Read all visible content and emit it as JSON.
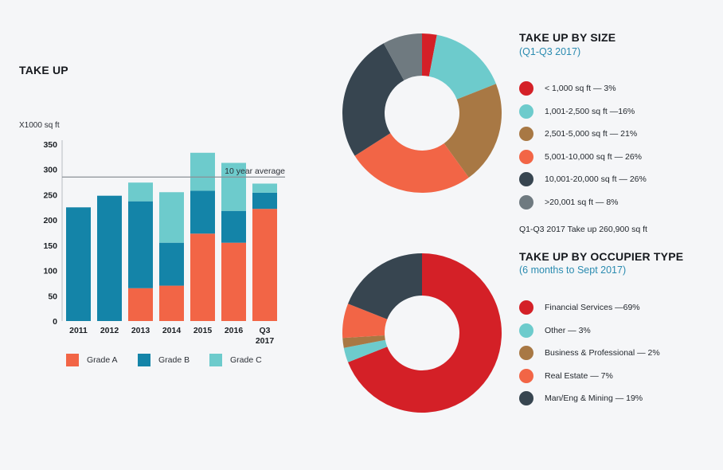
{
  "bar_section": {
    "title": "TAKE UP",
    "unit": "X1000 sq ft",
    "average_label": "10 year average"
  },
  "size_section": {
    "title": "TAKE UP BY SIZE",
    "subtitle": "(Q1-Q3 2017)",
    "note": "Q1-Q3 2017 Take up 260,900 sq ft"
  },
  "occupier_section": {
    "title": "TAKE UP BY OCCUPIER TYPE",
    "subtitle": "(6 months to Sept 2017)"
  },
  "chart_data": [
    {
      "type": "bar",
      "stacked": true,
      "title": "TAKE UP",
      "ylabel": "X1000 sq ft",
      "ylim": [
        0,
        350
      ],
      "yticks": [
        0,
        50,
        100,
        150,
        200,
        250,
        300,
        350
      ],
      "categories": [
        "2011",
        "2012",
        "2013",
        "2014",
        "2015",
        "2016",
        "Q3 2017"
      ],
      "series": [
        {
          "name": "Grade A",
          "color": "#f26546",
          "values": [
            0,
            0,
            65,
            70,
            173,
            155,
            222
          ]
        },
        {
          "name": "Grade B",
          "color": "#1484a8",
          "values": [
            225,
            248,
            172,
            85,
            85,
            63,
            32
          ]
        },
        {
          "name": "Grade C",
          "color": "#6dcbcc",
          "values": [
            0,
            0,
            37,
            100,
            75,
            95,
            18
          ]
        }
      ],
      "reference_line": {
        "label": "10 year average",
        "value": 285
      },
      "legend_position": "bottom",
      "grid": false
    },
    {
      "type": "pie",
      "donut": true,
      "title": "TAKE UP BY SIZE",
      "subtitle": "(Q1-Q3 2017)",
      "slices": [
        {
          "label": "< 1,000 sq ft — 3%",
          "value": 3,
          "color": "#d42027"
        },
        {
          "label": "1,001-2,500 sq ft —16%",
          "value": 16,
          "color": "#6dcbcc"
        },
        {
          "label": "2,501-5,000 sq ft — 21%",
          "value": 21,
          "color": "#a87844"
        },
        {
          "label": "5,001-10,000 sq ft — 26%",
          "value": 26,
          "color": "#f26546"
        },
        {
          "label": "10,001-20,000 sq ft — 26%",
          "value": 26,
          "color": "#374550"
        },
        {
          "label": ">20,001 sq ft — 8%",
          "value": 8,
          "color": "#6f7a80"
        }
      ],
      "legend_position": "right"
    },
    {
      "type": "pie",
      "donut": true,
      "title": "TAKE UP BY OCCUPIER TYPE",
      "subtitle": "(6 months to Sept 2017)",
      "slices": [
        {
          "label": "Financial Services —69%",
          "value": 69,
          "color": "#d42027"
        },
        {
          "label": "Other — 3%",
          "value": 3,
          "color": "#6dcbcc"
        },
        {
          "label": "Business & Professional — 2%",
          "value": 2,
          "color": "#a87844"
        },
        {
          "label": "Real Estate — 7%",
          "value": 7,
          "color": "#f26546"
        },
        {
          "label": "Man/Eng & Mining — 19%",
          "value": 19,
          "color": "#374550"
        }
      ],
      "legend_position": "right"
    }
  ]
}
